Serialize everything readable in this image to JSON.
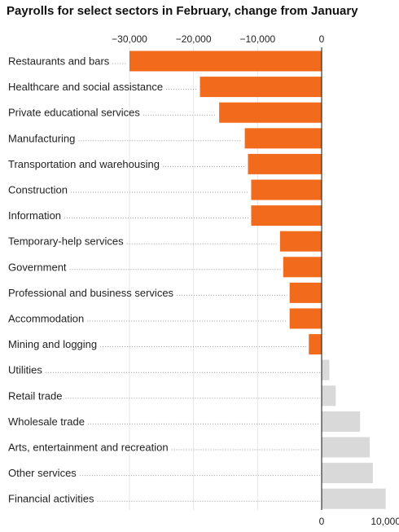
{
  "chart_data": {
    "type": "bar",
    "orientation": "horizontal",
    "title": "Payrolls for select sectors in February, change from January",
    "xlabel": "",
    "ylabel": "",
    "xlim": [
      -30000,
      10000
    ],
    "top_ticks": [
      -30000,
      -20000,
      -10000,
      0
    ],
    "top_tick_labels": [
      "−30,000",
      "−20,000",
      "−10,000",
      "0"
    ],
    "bottom_ticks": [
      0,
      10000
    ],
    "bottom_tick_labels": [
      "0",
      "10,000"
    ],
    "categories": [
      "Restaurants and bars",
      "Healthcare and social assistance",
      "Private educational services",
      "Manufacturing",
      "Transportation and warehousing",
      "Construction",
      "Information",
      "Temporary-help services",
      "Government",
      "Professional and business services",
      "Accommodation",
      "Mining and logging",
      "Utilities",
      "Retail trade",
      "Wholesale trade",
      "Arts, entertainment and recreation",
      "Other services",
      "Financial activities"
    ],
    "values": [
      -30000,
      -19000,
      -16000,
      -12000,
      -11500,
      -11000,
      -11000,
      -6500,
      -6000,
      -5000,
      -5000,
      -2000,
      1200,
      2200,
      6000,
      7500,
      8000,
      10000
    ],
    "colors": {
      "negative": "#f26b1d",
      "positive": "#d9d9d9"
    },
    "grid": true,
    "legend": "none"
  }
}
